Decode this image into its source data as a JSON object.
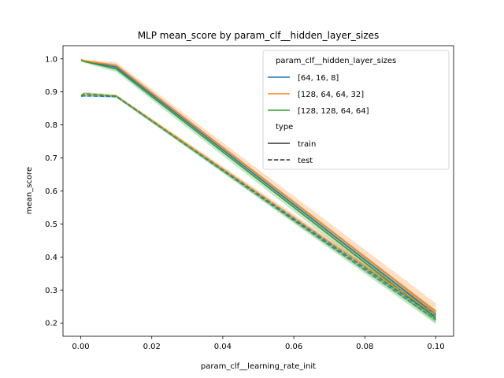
{
  "chart_data": {
    "type": "line",
    "title": "MLP mean_score by param_clf__hidden_layer_sizes",
    "xlabel": "param_clf__learning_rate_init",
    "ylabel": "mean_score",
    "xlim": [
      -0.005,
      0.105
    ],
    "ylim": [
      0.16,
      1.04
    ],
    "x_ticks": [
      0.0,
      0.02,
      0.04,
      0.06,
      0.08,
      0.1
    ],
    "x_tick_labels": [
      "0.00",
      "0.02",
      "0.04",
      "0.06",
      "0.08",
      "0.10"
    ],
    "y_ticks": [
      0.2,
      0.3,
      0.4,
      0.5,
      0.6,
      0.7,
      0.8,
      0.9,
      1.0
    ],
    "y_tick_labels": [
      "0.2",
      "0.3",
      "0.4",
      "0.5",
      "0.6",
      "0.7",
      "0.8",
      "0.9",
      "1.0"
    ],
    "x": [
      0.0001,
      0.001,
      0.01,
      0.1
    ],
    "grid": false,
    "legend_placement": "top-right",
    "legend": {
      "hue_title": "param_clf__hidden_layer_sizes",
      "style_title": "type",
      "style_entries": [
        {
          "label": "train",
          "dash": "solid"
        },
        {
          "label": "test",
          "dash": "dashed"
        }
      ]
    },
    "series": [
      {
        "name": "[64, 16, 8]",
        "color": "#1f77b4",
        "type": "train",
        "values": [
          0.997,
          0.993,
          0.975,
          0.225
        ],
        "lower": [
          0.994,
          0.99,
          0.965,
          0.215
        ],
        "upper": [
          1.0,
          0.996,
          0.985,
          0.24
        ]
      },
      {
        "name": "[128, 64, 64, 32]",
        "color": "#ff7f0e",
        "type": "train",
        "values": [
          0.998,
          0.994,
          0.98,
          0.235
        ],
        "lower": [
          0.995,
          0.99,
          0.97,
          0.215
        ],
        "upper": [
          1.0,
          0.998,
          0.99,
          0.26
        ]
      },
      {
        "name": "[128, 128, 64, 64]",
        "color": "#2ca02c",
        "type": "train",
        "values": [
          0.996,
          0.992,
          0.97,
          0.215
        ],
        "lower": [
          0.993,
          0.988,
          0.96,
          0.2
        ],
        "upper": [
          0.999,
          0.996,
          0.98,
          0.235
        ]
      },
      {
        "name": "[64, 16, 8]",
        "color": "#1f77b4",
        "type": "test",
        "values": [
          0.887,
          0.888,
          0.886,
          0.218
        ],
        "lower": [
          0.884,
          0.885,
          0.882,
          0.205
        ],
        "upper": [
          0.89,
          0.891,
          0.89,
          0.23
        ]
      },
      {
        "name": "[128, 64, 64, 32]",
        "color": "#ff7f0e",
        "type": "test",
        "values": [
          0.89,
          0.893,
          0.888,
          0.225
        ],
        "lower": [
          0.886,
          0.889,
          0.884,
          0.21
        ],
        "upper": [
          0.894,
          0.897,
          0.892,
          0.24
        ]
      },
      {
        "name": "[128, 128, 64, 64]",
        "color": "#2ca02c",
        "type": "test",
        "values": [
          0.888,
          0.895,
          0.887,
          0.21
        ],
        "lower": [
          0.884,
          0.89,
          0.883,
          0.197
        ],
        "upper": [
          0.892,
          0.9,
          0.891,
          0.225
        ]
      }
    ]
  }
}
